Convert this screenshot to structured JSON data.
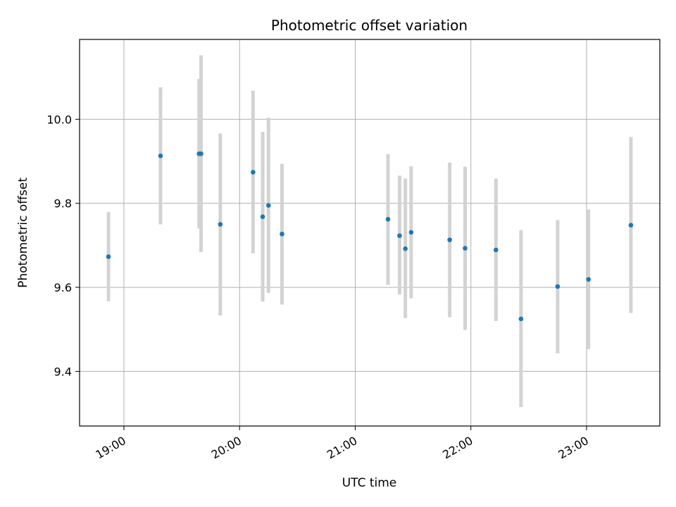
{
  "chart_data": {
    "type": "scatter",
    "title": "Photometric offset variation",
    "xlabel": "UTC time",
    "ylabel": "Photometric offset",
    "x_unit": "UTC",
    "x_range": [
      "18:37",
      "23:38"
    ],
    "ylim": [
      9.27,
      10.19
    ],
    "grid": true,
    "x_ticks": [
      "19:00",
      "20:00",
      "21:00",
      "22:00",
      "23:00"
    ],
    "y_ticks": [
      9.4,
      9.6,
      9.8,
      10.0
    ],
    "y_tick_labels": [
      "9.4",
      "9.6",
      "9.8",
      "10.0"
    ],
    "points": [
      {
        "x": "18:52",
        "y": 9.673,
        "err_low": 9.567,
        "err_high": 9.779
      },
      {
        "x": "19:19",
        "y": 9.913,
        "err_low": 9.75,
        "err_high": 10.076
      },
      {
        "x": "19:39",
        "y": 9.918,
        "err_low": 9.74,
        "err_high": 10.096
      },
      {
        "x": "19:40",
        "y": 9.918,
        "err_low": 9.684,
        "err_high": 10.152
      },
      {
        "x": "19:50",
        "y": 9.75,
        "err_low": 9.533,
        "err_high": 9.966
      },
      {
        "x": "20:07",
        "y": 9.874,
        "err_low": 9.681,
        "err_high": 10.068
      },
      {
        "x": "20:12",
        "y": 9.768,
        "err_low": 9.566,
        "err_high": 9.97
      },
      {
        "x": "20:15",
        "y": 9.795,
        "err_low": 9.587,
        "err_high": 10.004
      },
      {
        "x": "20:22",
        "y": 9.727,
        "err_low": 9.559,
        "err_high": 9.894
      },
      {
        "x": "21:17",
        "y": 9.762,
        "err_low": 9.606,
        "err_high": 9.917
      },
      {
        "x": "21:23",
        "y": 9.723,
        "err_low": 9.583,
        "err_high": 9.866
      },
      {
        "x": "21:26",
        "y": 9.692,
        "err_low": 9.527,
        "err_high": 9.859
      },
      {
        "x": "21:29",
        "y": 9.731,
        "err_low": 9.574,
        "err_high": 9.888
      },
      {
        "x": "21:49",
        "y": 9.713,
        "err_low": 9.529,
        "err_high": 9.897
      },
      {
        "x": "21:57",
        "y": 9.693,
        "err_low": 9.499,
        "err_high": 9.887
      },
      {
        "x": "22:13",
        "y": 9.689,
        "err_low": 9.52,
        "err_high": 9.859
      },
      {
        "x": "22:26",
        "y": 9.525,
        "err_low": 9.315,
        "err_high": 9.736
      },
      {
        "x": "22:45",
        "y": 9.602,
        "err_low": 9.443,
        "err_high": 9.76
      },
      {
        "x": "23:01",
        "y": 9.619,
        "err_low": 9.453,
        "err_high": 9.785
      },
      {
        "x": "23:23",
        "y": 9.748,
        "err_low": 9.539,
        "err_high": 9.958
      }
    ],
    "colors": {
      "point": "#1f77b4",
      "errorbar": "#d3d3d3",
      "grid": "#b0b0b0",
      "axes": "#000000"
    }
  }
}
